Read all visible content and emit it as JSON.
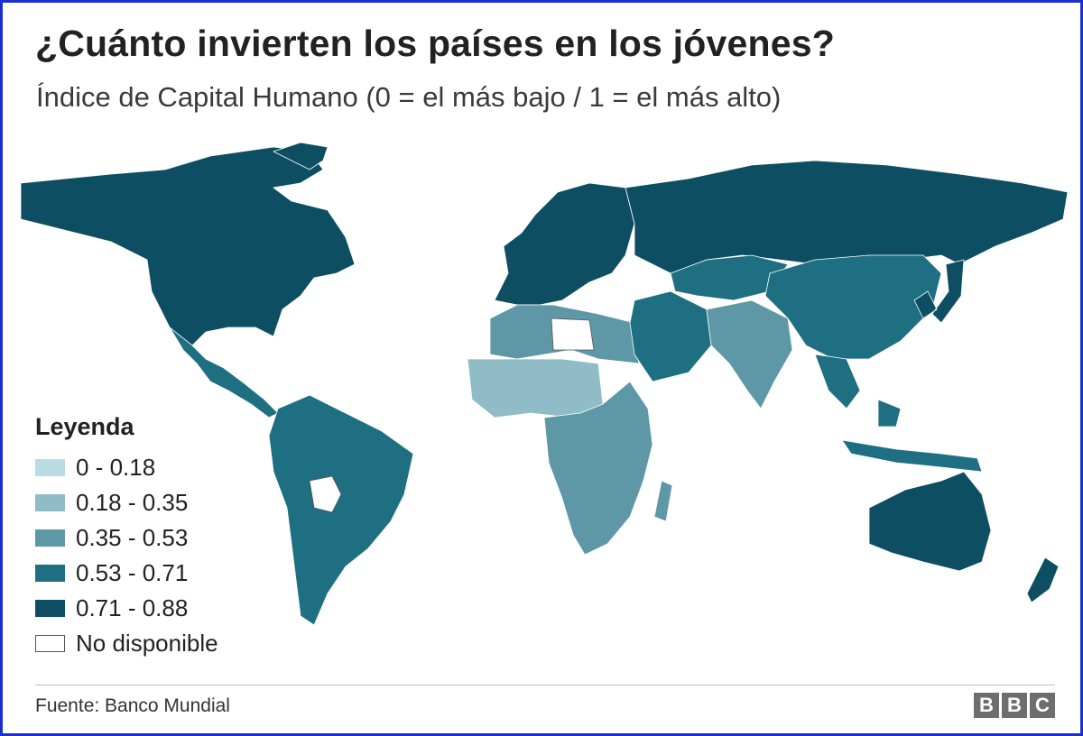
{
  "title": "¿Cuánto invierten los países en los jóvenes?",
  "subtitle": "Índice de Capital Humano (0 = el más bajo / 1 = el más alto)",
  "legend": {
    "title": "Leyenda",
    "items": [
      {
        "label": "0 - 0.18",
        "color": "#b9dbe3"
      },
      {
        "label": "0.18 - 0.35",
        "color": "#8fbcc7"
      },
      {
        "label": "0.35 - 0.53",
        "color": "#5e98a6"
      },
      {
        "label": "0.53 - 0.71",
        "color": "#1f6f82"
      },
      {
        "label": "0.71 - 0.88",
        "color": "#0d4e63"
      },
      {
        "label": "No disponible",
        "color": "#ffffff"
      }
    ]
  },
  "source": "Fuente: Banco Mundial",
  "logo": [
    "B",
    "B",
    "C"
  ],
  "regions": [
    {
      "name": "north-america",
      "class": "0.71 - 0.88"
    },
    {
      "name": "greenland",
      "class": "0.71 - 0.88"
    },
    {
      "name": "mexico-central-america",
      "class": "0.53 - 0.71"
    },
    {
      "name": "south-america",
      "class": "0.53 - 0.71"
    },
    {
      "name": "bolivia",
      "class": "No disponible"
    },
    {
      "name": "europe",
      "class": "0.71 - 0.88"
    },
    {
      "name": "russia",
      "class": "0.71 - 0.88"
    },
    {
      "name": "north-africa",
      "class": "0.35 - 0.53"
    },
    {
      "name": "libya",
      "class": "No disponible"
    },
    {
      "name": "west-africa",
      "class": "0.18 - 0.35"
    },
    {
      "name": "central-southern-africa",
      "class": "0.35 - 0.53"
    },
    {
      "name": "middle-east",
      "class": "0.53 - 0.71"
    },
    {
      "name": "central-asia",
      "class": "0.53 - 0.71"
    },
    {
      "name": "south-asia",
      "class": "0.35 - 0.53"
    },
    {
      "name": "china",
      "class": "0.53 - 0.71"
    },
    {
      "name": "japan-korea",
      "class": "0.71 - 0.88"
    },
    {
      "name": "southeast-asia",
      "class": "0.53 - 0.71"
    },
    {
      "name": "australia",
      "class": "0.71 - 0.88"
    },
    {
      "name": "new-zealand",
      "class": "0.71 - 0.88"
    }
  ]
}
